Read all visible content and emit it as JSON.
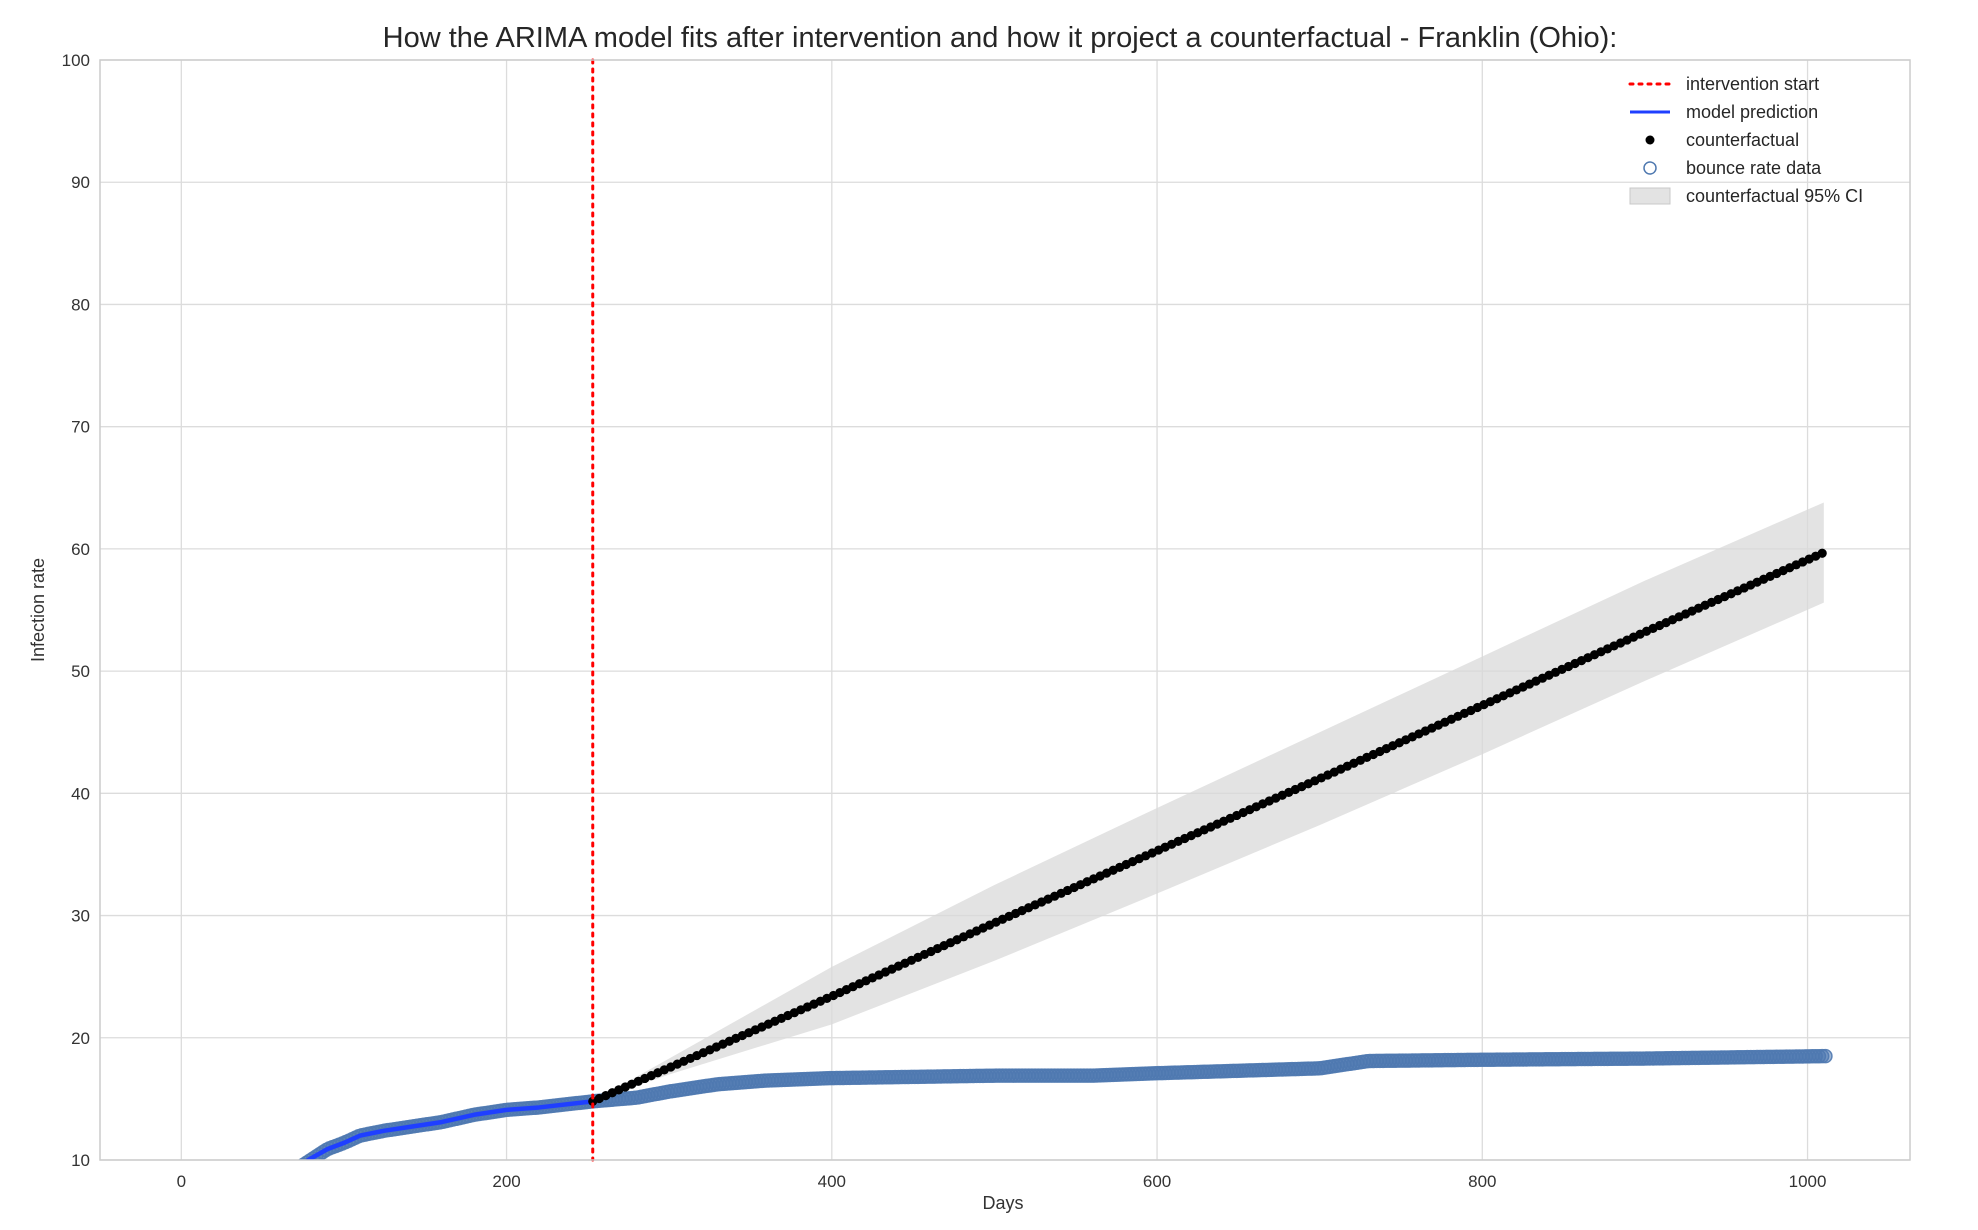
{
  "chart_data": {
    "type": "line",
    "title": "How the ARIMA model fits after intervention and how it project a counterfactual - Franklin (Ohio):",
    "xlabel": "Days",
    "ylabel": "Infection rate",
    "xlim": [
      -50,
      1063
    ],
    "ylim": [
      10,
      100
    ],
    "x_ticks": [
      0,
      200,
      400,
      600,
      800,
      1000
    ],
    "y_ticks": [
      10,
      20,
      30,
      40,
      50,
      60,
      70,
      80,
      90,
      100
    ],
    "grid": true,
    "legend_position": "top-right",
    "intervention_x": 253,
    "series": [
      {
        "name": "intervention start",
        "kind": "vline",
        "color": "#ff0000",
        "style": "dotted",
        "x": 253
      },
      {
        "name": "model prediction",
        "kind": "line",
        "color": "#1f3fff",
        "style": "solid",
        "points": [
          [
            78,
            10
          ],
          [
            90,
            10.9
          ],
          [
            100,
            11.4
          ],
          [
            110,
            12.0
          ],
          [
            125,
            12.4
          ],
          [
            140,
            12.7
          ],
          [
            160,
            13.1
          ],
          [
            180,
            13.7
          ],
          [
            200,
            14.1
          ],
          [
            220,
            14.3
          ],
          [
            253,
            14.8
          ]
        ]
      },
      {
        "name": "counterfactual",
        "kind": "points",
        "color": "#000000",
        "points": [
          [
            253,
            14.8
          ],
          [
            400,
            23.4
          ],
          [
            500,
            29.4
          ],
          [
            600,
            35.3
          ],
          [
            700,
            41.2
          ],
          [
            800,
            47.2
          ],
          [
            900,
            53.2
          ],
          [
            1010,
            59.7
          ]
        ]
      },
      {
        "name": "bounce rate data",
        "kind": "markers",
        "color": "#4f79b0",
        "style": "open-circle",
        "points": [
          [
            75,
            9.6
          ],
          [
            90,
            10.9
          ],
          [
            100,
            11.4
          ],
          [
            110,
            12.0
          ],
          [
            125,
            12.4
          ],
          [
            140,
            12.7
          ],
          [
            160,
            13.1
          ],
          [
            180,
            13.7
          ],
          [
            200,
            14.1
          ],
          [
            220,
            14.3
          ],
          [
            253,
            14.8
          ],
          [
            280,
            15.1
          ],
          [
            300,
            15.6
          ],
          [
            330,
            16.2
          ],
          [
            360,
            16.5
          ],
          [
            400,
            16.7
          ],
          [
            450,
            16.8
          ],
          [
            500,
            16.9
          ],
          [
            560,
            16.9
          ],
          [
            600,
            17.1
          ],
          [
            650,
            17.3
          ],
          [
            700,
            17.5
          ],
          [
            730,
            18.1
          ],
          [
            800,
            18.2
          ],
          [
            900,
            18.3
          ],
          [
            1012,
            18.5
          ]
        ]
      },
      {
        "name": "counterfactual 95% CI",
        "kind": "band",
        "color": "#d9d9d9",
        "upper": [
          [
            253,
            14.8
          ],
          [
            300,
            18.3
          ],
          [
            400,
            25.8
          ],
          [
            500,
            32.5
          ],
          [
            600,
            38.8
          ],
          [
            700,
            45.0
          ],
          [
            800,
            51.2
          ],
          [
            900,
            57.4
          ],
          [
            1010,
            63.8
          ]
        ],
        "lower": [
          [
            253,
            14.8
          ],
          [
            300,
            17.0
          ],
          [
            400,
            21.1
          ],
          [
            500,
            26.3
          ],
          [
            600,
            31.8
          ],
          [
            700,
            37.4
          ],
          [
            800,
            43.2
          ],
          [
            900,
            49.2
          ],
          [
            1010,
            55.6
          ]
        ]
      }
    ]
  }
}
